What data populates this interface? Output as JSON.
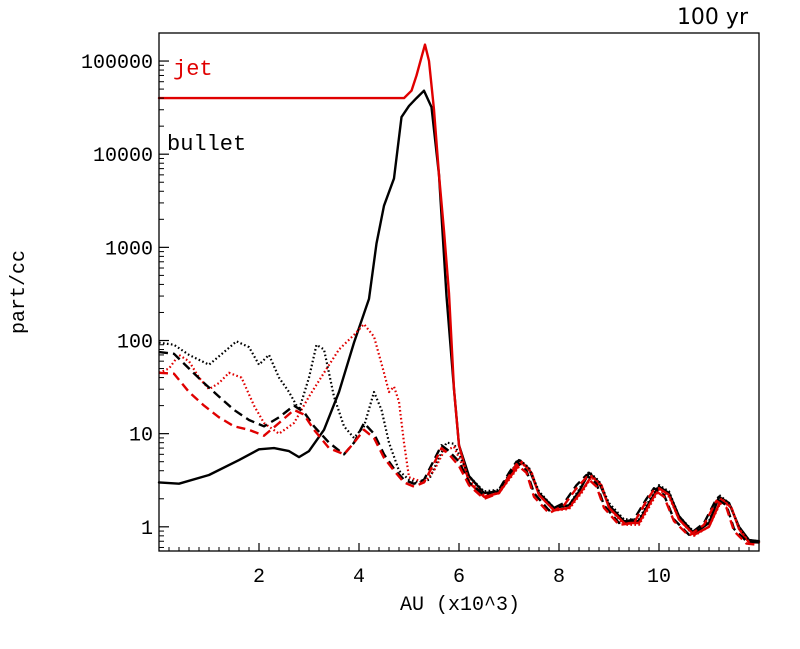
{
  "corner_label": "100 yr",
  "chart_data": {
    "type": "line",
    "title": "",
    "xlabel": "AU (x10^3)",
    "ylabel": "part/cc",
    "xlim": [
      0,
      12
    ],
    "ylim": [
      0.55,
      200000
    ],
    "y_scale": "log",
    "x_ticks": [
      2,
      4,
      6,
      8,
      10
    ],
    "y_ticks": [
      1,
      10,
      100,
      1000,
      10000,
      100000
    ],
    "y_tick_labels": [
      "1",
      "10",
      "100",
      "1000",
      "10000",
      "100000"
    ],
    "annotations": [
      {
        "text": "jet",
        "color": "#e00000"
      },
      {
        "text": "bullet",
        "color": "#000000"
      }
    ],
    "series": [
      {
        "color": "#000000",
        "dash": "solid",
        "points": [
          [
            0,
            3.0
          ],
          [
            0.4,
            2.9
          ],
          [
            1.0,
            3.6
          ],
          [
            1.6,
            5.2
          ],
          [
            2.0,
            6.8
          ],
          [
            2.3,
            7.0
          ],
          [
            2.6,
            6.5
          ],
          [
            2.8,
            5.6
          ],
          [
            3.0,
            6.5
          ],
          [
            3.3,
            11
          ],
          [
            3.6,
            28
          ],
          [
            3.9,
            95
          ],
          [
            4.2,
            280
          ],
          [
            4.35,
            1100
          ],
          [
            4.5,
            2800
          ],
          [
            4.7,
            5500
          ],
          [
            4.85,
            25000
          ],
          [
            5.0,
            33000
          ],
          [
            5.15,
            40000
          ],
          [
            5.3,
            48000
          ],
          [
            5.45,
            32000
          ],
          [
            5.6,
            6000
          ],
          [
            5.75,
            300
          ],
          [
            5.9,
            30
          ],
          [
            6.0,
            7.5
          ],
          [
            6.2,
            3.5
          ],
          [
            6.5,
            2.3
          ],
          [
            6.8,
            2.4
          ],
          [
            7.0,
            3.5
          ],
          [
            7.2,
            5.2
          ],
          [
            7.4,
            4.2
          ],
          [
            7.6,
            2.3
          ],
          [
            7.9,
            1.6
          ],
          [
            8.2,
            1.7
          ],
          [
            8.4,
            2.4
          ],
          [
            8.6,
            3.8
          ],
          [
            8.8,
            3.0
          ],
          [
            9.0,
            1.7
          ],
          [
            9.3,
            1.15
          ],
          [
            9.6,
            1.15
          ],
          [
            9.8,
            1.8
          ],
          [
            10.0,
            2.7
          ],
          [
            10.2,
            2.3
          ],
          [
            10.4,
            1.3
          ],
          [
            10.7,
            0.85
          ],
          [
            11.0,
            1.1
          ],
          [
            11.2,
            2.1
          ],
          [
            11.4,
            1.8
          ],
          [
            11.6,
            1.0
          ],
          [
            11.8,
            0.72
          ],
          [
            12.0,
            0.7
          ]
        ]
      },
      {
        "color": "#e00000",
        "dash": "solid",
        "points": [
          [
            0,
            40000
          ],
          [
            1.0,
            40000
          ],
          [
            2.0,
            40000
          ],
          [
            3.0,
            40000
          ],
          [
            4.0,
            40000
          ],
          [
            4.9,
            40000
          ],
          [
            5.05,
            48000
          ],
          [
            5.15,
            70000
          ],
          [
            5.25,
            110000
          ],
          [
            5.32,
            150000
          ],
          [
            5.4,
            100000
          ],
          [
            5.5,
            30000
          ],
          [
            5.6,
            6000
          ],
          [
            5.7,
            1500
          ],
          [
            5.8,
            320
          ],
          [
            5.9,
            30
          ],
          [
            6.0,
            7.5
          ],
          [
            6.2,
            3.0
          ],
          [
            6.5,
            2.1
          ],
          [
            6.8,
            2.3
          ],
          [
            7.0,
            3.3
          ],
          [
            7.25,
            5.0
          ],
          [
            7.45,
            3.8
          ],
          [
            7.6,
            2.2
          ],
          [
            7.9,
            1.5
          ],
          [
            8.2,
            1.6
          ],
          [
            8.45,
            2.4
          ],
          [
            8.65,
            3.5
          ],
          [
            8.85,
            2.8
          ],
          [
            9.0,
            1.6
          ],
          [
            9.3,
            1.1
          ],
          [
            9.6,
            1.1
          ],
          [
            9.85,
            1.9
          ],
          [
            10.0,
            2.6
          ],
          [
            10.2,
            2.2
          ],
          [
            10.4,
            1.2
          ],
          [
            10.7,
            0.82
          ],
          [
            11.0,
            1.0
          ],
          [
            11.25,
            2.0
          ],
          [
            11.45,
            1.6
          ],
          [
            11.6,
            0.95
          ],
          [
            11.8,
            0.68
          ],
          [
            12.0,
            0.68
          ]
        ]
      },
      {
        "color": "#000000",
        "dash": "dotted",
        "points": [
          [
            0,
            95
          ],
          [
            0.3,
            90
          ],
          [
            0.6,
            70
          ],
          [
            1.0,
            55
          ],
          [
            1.3,
            75
          ],
          [
            1.55,
            98
          ],
          [
            1.8,
            85
          ],
          [
            2.0,
            55
          ],
          [
            2.2,
            70
          ],
          [
            2.4,
            40
          ],
          [
            2.6,
            28
          ],
          [
            2.8,
            18
          ],
          [
            3.0,
            40
          ],
          [
            3.15,
            90
          ],
          [
            3.3,
            80
          ],
          [
            3.5,
            25
          ],
          [
            3.7,
            12
          ],
          [
            3.9,
            9
          ],
          [
            4.1,
            12
          ],
          [
            4.3,
            28
          ],
          [
            4.45,
            18
          ],
          [
            4.6,
            8
          ],
          [
            4.8,
            4
          ],
          [
            5.0,
            3.2
          ],
          [
            5.2,
            3.0
          ],
          [
            5.4,
            3.2
          ],
          [
            5.6,
            5.5
          ],
          [
            5.75,
            8.0
          ],
          [
            5.9,
            7.8
          ],
          [
            6.0,
            6.0
          ],
          [
            6.2,
            3.5
          ],
          [
            6.5,
            2.4
          ],
          [
            6.8,
            2.5
          ],
          [
            7.0,
            3.6
          ],
          [
            7.2,
            5.3
          ],
          [
            7.4,
            4.3
          ],
          [
            7.6,
            2.4
          ],
          [
            7.9,
            1.6
          ],
          [
            8.2,
            1.7
          ],
          [
            8.4,
            2.5
          ],
          [
            8.6,
            3.9
          ],
          [
            8.8,
            3.1
          ],
          [
            9.0,
            1.8
          ],
          [
            9.3,
            1.2
          ],
          [
            9.6,
            1.2
          ],
          [
            9.8,
            1.9
          ],
          [
            10.0,
            2.8
          ],
          [
            10.2,
            2.4
          ],
          [
            10.4,
            1.3
          ],
          [
            10.7,
            0.88
          ],
          [
            11.0,
            1.15
          ],
          [
            11.2,
            2.2
          ],
          [
            11.4,
            1.8
          ],
          [
            11.6,
            1.0
          ],
          [
            11.8,
            0.72
          ],
          [
            12.0,
            0.7
          ]
        ]
      },
      {
        "color": "#e00000",
        "dash": "dotted",
        "points": [
          [
            0,
            45
          ],
          [
            0.2,
            50
          ],
          [
            0.4,
            70
          ],
          [
            0.6,
            60
          ],
          [
            0.8,
            40
          ],
          [
            1.0,
            30
          ],
          [
            1.2,
            35
          ],
          [
            1.4,
            45
          ],
          [
            1.65,
            40
          ],
          [
            1.9,
            20
          ],
          [
            2.1,
            13
          ],
          [
            2.4,
            10
          ],
          [
            2.7,
            13
          ],
          [
            3.0,
            25
          ],
          [
            3.3,
            45
          ],
          [
            3.6,
            80
          ],
          [
            3.9,
            115
          ],
          [
            4.1,
            150
          ],
          [
            4.3,
            110
          ],
          [
            4.5,
            45
          ],
          [
            4.6,
            28
          ],
          [
            4.7,
            32
          ],
          [
            4.8,
            22
          ],
          [
            4.9,
            8
          ],
          [
            5.0,
            3.4
          ],
          [
            5.3,
            3.0
          ],
          [
            5.5,
            4.0
          ],
          [
            5.7,
            6.5
          ],
          [
            5.9,
            7.2
          ],
          [
            6.0,
            5.5
          ],
          [
            6.2,
            3.2
          ],
          [
            6.5,
            2.2
          ],
          [
            6.8,
            2.3
          ],
          [
            7.0,
            3.2
          ],
          [
            7.25,
            4.8
          ],
          [
            7.45,
            3.9
          ],
          [
            7.6,
            2.2
          ],
          [
            7.9,
            1.5
          ],
          [
            8.2,
            1.55
          ],
          [
            8.45,
            2.3
          ],
          [
            8.65,
            3.4
          ],
          [
            8.85,
            2.7
          ],
          [
            9.0,
            1.6
          ],
          [
            9.3,
            1.05
          ],
          [
            9.6,
            1.05
          ],
          [
            9.85,
            1.8
          ],
          [
            10.0,
            2.5
          ],
          [
            10.2,
            2.1
          ],
          [
            10.4,
            1.2
          ],
          [
            10.7,
            0.8
          ],
          [
            11.0,
            1.0
          ],
          [
            11.25,
            1.9
          ],
          [
            11.45,
            1.6
          ],
          [
            11.6,
            0.95
          ],
          [
            11.8,
            0.68
          ],
          [
            12.0,
            0.68
          ]
        ]
      },
      {
        "color": "#000000",
        "dash": "dashed",
        "points": [
          [
            0,
            75
          ],
          [
            0.3,
            72
          ],
          [
            0.6,
            50
          ],
          [
            0.9,
            35
          ],
          [
            1.2,
            25
          ],
          [
            1.5,
            18
          ],
          [
            1.8,
            14
          ],
          [
            2.1,
            12
          ],
          [
            2.4,
            15
          ],
          [
            2.7,
            20
          ],
          [
            2.9,
            17
          ],
          [
            3.1,
            12
          ],
          [
            3.4,
            8
          ],
          [
            3.7,
            6
          ],
          [
            3.9,
            8
          ],
          [
            4.1,
            13
          ],
          [
            4.3,
            10
          ],
          [
            4.5,
            6
          ],
          [
            4.7,
            4.2
          ],
          [
            4.9,
            3.2
          ],
          [
            5.1,
            2.9
          ],
          [
            5.3,
            3.2
          ],
          [
            5.5,
            5.2
          ],
          [
            5.65,
            7.5
          ],
          [
            5.8,
            6.5
          ],
          [
            6.0,
            5.0
          ],
          [
            6.2,
            3.0
          ],
          [
            6.5,
            2.2
          ],
          [
            6.8,
            2.5
          ],
          [
            7.0,
            3.8
          ],
          [
            7.15,
            5.0
          ],
          [
            7.35,
            4.0
          ],
          [
            7.5,
            2.3
          ],
          [
            7.8,
            1.5
          ],
          [
            8.1,
            1.8
          ],
          [
            8.35,
            2.8
          ],
          [
            8.55,
            3.6
          ],
          [
            8.75,
            2.9
          ],
          [
            8.9,
            1.7
          ],
          [
            9.2,
            1.1
          ],
          [
            9.5,
            1.2
          ],
          [
            9.75,
            2.0
          ],
          [
            9.9,
            2.6
          ],
          [
            10.1,
            2.2
          ],
          [
            10.3,
            1.2
          ],
          [
            10.6,
            0.82
          ],
          [
            10.9,
            1.1
          ],
          [
            11.15,
            2.0
          ],
          [
            11.35,
            1.7
          ],
          [
            11.5,
            0.95
          ],
          [
            11.75,
            0.7
          ],
          [
            12.0,
            0.68
          ]
        ]
      },
      {
        "color": "#e00000",
        "dash": "dashed",
        "points": [
          [
            0,
            45
          ],
          [
            0.3,
            44
          ],
          [
            0.6,
            28
          ],
          [
            0.9,
            20
          ],
          [
            1.2,
            15
          ],
          [
            1.5,
            12
          ],
          [
            1.8,
            11
          ],
          [
            2.1,
            9.5
          ],
          [
            2.4,
            13
          ],
          [
            2.7,
            18
          ],
          [
            2.9,
            16
          ],
          [
            3.1,
            11
          ],
          [
            3.4,
            7
          ],
          [
            3.7,
            6
          ],
          [
            3.9,
            8
          ],
          [
            4.1,
            11
          ],
          [
            4.3,
            9
          ],
          [
            4.5,
            5.5
          ],
          [
            4.7,
            4.0
          ],
          [
            4.9,
            3.0
          ],
          [
            5.1,
            2.7
          ],
          [
            5.3,
            3.0
          ],
          [
            5.5,
            4.8
          ],
          [
            5.65,
            7.0
          ],
          [
            5.8,
            6.0
          ],
          [
            6.0,
            4.5
          ],
          [
            6.2,
            2.8
          ],
          [
            6.5,
            2.0
          ],
          [
            6.8,
            2.3
          ],
          [
            7.0,
            3.5
          ],
          [
            7.15,
            4.7
          ],
          [
            7.35,
            3.8
          ],
          [
            7.5,
            2.1
          ],
          [
            7.8,
            1.4
          ],
          [
            8.1,
            1.7
          ],
          [
            8.35,
            2.6
          ],
          [
            8.55,
            3.4
          ],
          [
            8.75,
            2.7
          ],
          [
            8.9,
            1.6
          ],
          [
            9.2,
            1.05
          ],
          [
            9.5,
            1.1
          ],
          [
            9.75,
            1.9
          ],
          [
            9.9,
            2.5
          ],
          [
            10.1,
            2.1
          ],
          [
            10.3,
            1.15
          ],
          [
            10.6,
            0.8
          ],
          [
            10.9,
            1.05
          ],
          [
            11.15,
            1.9
          ],
          [
            11.35,
            1.6
          ],
          [
            11.5,
            0.9
          ],
          [
            11.75,
            0.66
          ],
          [
            12.0,
            0.64
          ]
        ]
      }
    ]
  }
}
